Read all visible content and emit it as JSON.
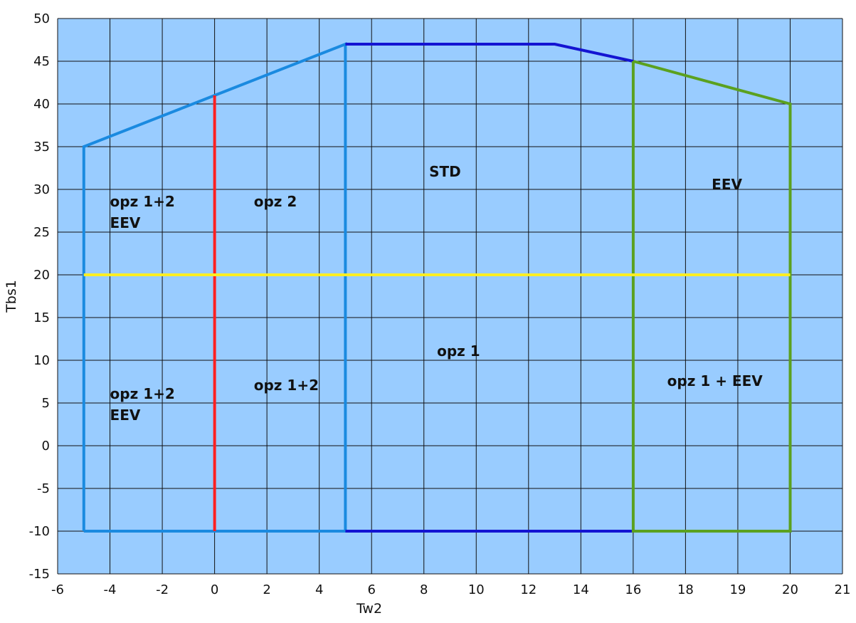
{
  "chart_data": {
    "type": "line",
    "title": "",
    "xlabel": "Tw2",
    "ylabel": "Tbs1",
    "grid": true,
    "plot_background": "#99ccff",
    "x_tick_labels": [
      "-6",
      "-4",
      "-2",
      "0",
      "2",
      "4",
      "6",
      "8",
      "10",
      "12",
      "14",
      "16",
      "18",
      "19",
      "20",
      "21"
    ],
    "y_ticks": [
      50,
      45,
      40,
      35,
      30,
      25,
      20,
      15,
      10,
      5,
      0,
      -5,
      -10,
      -15
    ],
    "ylim": [
      -15,
      50
    ],
    "series": [
      {
        "color": "#1a8ae0",
        "x": [
          -5,
          -5,
          0,
          5,
          5,
          -5
        ],
        "y": [
          -10,
          35,
          41,
          47,
          -10,
          -10
        ]
      },
      {
        "color": "#1414d2",
        "x": [
          5,
          13,
          16
        ],
        "y": [
          47,
          47,
          45
        ]
      },
      {
        "color": "#1414d2",
        "x": [
          5,
          16
        ],
        "y": [
          -10,
          -10
        ]
      },
      {
        "color": "#5ba11f",
        "x": [
          16,
          20,
          20,
          16,
          16
        ],
        "y": [
          45,
          40,
          -10,
          -10,
          45
        ]
      },
      {
        "color": "#ff2020",
        "x": [
          0,
          0
        ],
        "y": [
          41,
          -10
        ]
      },
      {
        "color": "#ffee22",
        "x": [
          -5,
          20
        ],
        "y": [
          20,
          20
        ]
      }
    ],
    "annotations": [
      {
        "lines": [
          "opz 1+2",
          "EEV"
        ],
        "x": -4,
        "y": 28
      },
      {
        "lines": [
          "opz 2"
        ],
        "x": 1.5,
        "y": 28
      },
      {
        "lines": [
          "STD"
        ],
        "x": 8.2,
        "y": 31.5
      },
      {
        "lines": [
          "EEV"
        ],
        "x": 18.5,
        "y": 30
      },
      {
        "lines": [
          "opz 1"
        ],
        "x": 8.5,
        "y": 10.5
      },
      {
        "lines": [
          "opz 1+2",
          "EEV"
        ],
        "x": -4,
        "y": 5.5
      },
      {
        "lines": [
          "opz 1+2"
        ],
        "x": 1.5,
        "y": 6.5
      },
      {
        "lines": [
          "opz 1 + EEV"
        ],
        "x": 17.3,
        "y": 7
      }
    ]
  }
}
